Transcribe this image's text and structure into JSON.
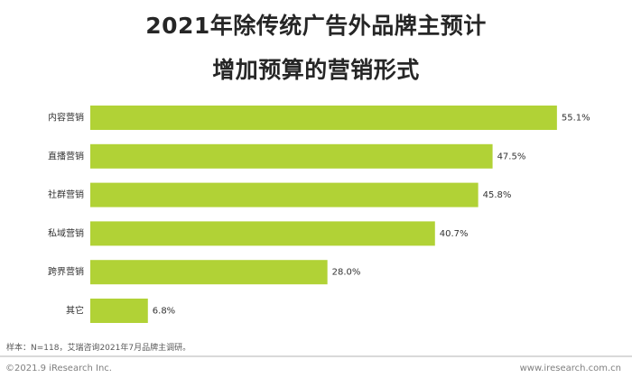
{
  "colors": {
    "bar": "#b1d236",
    "text": "#333333",
    "title": "#262626"
  },
  "chart_data": {
    "type": "bar",
    "orientation": "horizontal",
    "title": "2021年除传统广告外品牌主预计增加预算的营销形式",
    "title_lines": [
      "2021年除传统广告外品牌主预计",
      "增加预算的营销形式"
    ],
    "categories": [
      "内容营销",
      "直播营销",
      "社群营销",
      "私域营销",
      "跨界营销",
      "其它"
    ],
    "values": [
      55.1,
      47.5,
      45.8,
      40.7,
      28.0,
      6.8
    ],
    "value_labels": [
      "55.1%",
      "47.5%",
      "45.8%",
      "40.7%",
      "28.0%",
      "6.8%"
    ],
    "unit": "%",
    "xlim": [
      0,
      56.5
    ],
    "grid": false,
    "legend": "none"
  },
  "footer": {
    "note": "样本：N=118，艾瑞咨询2021年7月品牌主调研。",
    "copyright": "©2021.9 iResearch Inc.",
    "website": "www.iresearch.com.cn"
  }
}
